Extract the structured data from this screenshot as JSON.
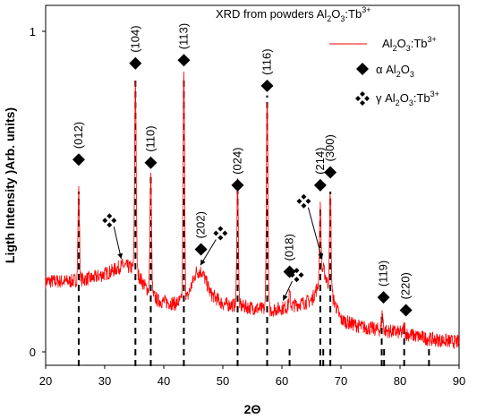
{
  "chart_data": {
    "type": "line",
    "title": "XRD from powders Al₂O₃:Tb³⁺",
    "title_parts": {
      "base": "XRD from powders Al",
      "s1": "2",
      "o": "O",
      "s2": "3",
      "tail": ":Tb",
      "sup": "3+"
    },
    "xlabel": "2Θ",
    "ylabel": "Ligth Intensity )Arb. units)",
    "xlim": [
      20,
      90
    ],
    "ylim": [
      0,
      1
    ],
    "xticks": [
      "20",
      "30",
      "40",
      "50",
      "60",
      "70",
      "80",
      "90"
    ],
    "yticks": [
      "0",
      "1"
    ],
    "series": [
      {
        "name": "Al₂O₃:Tb³⁺",
        "color": "#ff0000",
        "baseline": [
          [
            20,
            0.22
          ],
          [
            24,
            0.22
          ],
          [
            28,
            0.23
          ],
          [
            31,
            0.25
          ],
          [
            33,
            0.27
          ],
          [
            35,
            0.26
          ],
          [
            37,
            0.2
          ],
          [
            39,
            0.16
          ],
          [
            42,
            0.15
          ],
          [
            44,
            0.17
          ],
          [
            45.5,
            0.25
          ],
          [
            46.5,
            0.25
          ],
          [
            48,
            0.18
          ],
          [
            50,
            0.15
          ],
          [
            54,
            0.14
          ],
          [
            58,
            0.13
          ],
          [
            61,
            0.14
          ],
          [
            63,
            0.15
          ],
          [
            65,
            0.16
          ],
          [
            66,
            0.2
          ],
          [
            67,
            0.26
          ],
          [
            68,
            0.2
          ],
          [
            70,
            0.1
          ],
          [
            73,
            0.08
          ],
          [
            76,
            0.07
          ],
          [
            80,
            0.06
          ],
          [
            85,
            0.04
          ],
          [
            90,
            0.03
          ]
        ],
        "peaks": [
          [
            25.6,
            0.5
          ],
          [
            35.2,
            0.85
          ],
          [
            37.8,
            0.55
          ],
          [
            43.4,
            0.86
          ],
          [
            52.5,
            0.53
          ],
          [
            57.5,
            0.8
          ],
          [
            61.3,
            0.18
          ],
          [
            66.5,
            0.45
          ],
          [
            68.2,
            0.5
          ],
          [
            77.0,
            0.12
          ],
          [
            80.7,
            0.08
          ]
        ]
      }
    ],
    "alpha_lines": [
      25.6,
      35.2,
      37.8,
      43.4,
      52.5,
      57.5,
      66.5,
      68.2,
      76.9,
      80.7
    ],
    "gamma_lines": [
      61.3,
      67.0,
      77.3,
      84.9
    ],
    "peak_labels": [
      {
        "x": 25.6,
        "y": 0.6,
        "hkl": "(012)",
        "symbol": "alpha"
      },
      {
        "x": 35.2,
        "y": 0.9,
        "hkl": "(104)",
        "symbol": "alpha"
      },
      {
        "x": 37.8,
        "y": 0.59,
        "hkl": "(110)",
        "symbol": "alpha"
      },
      {
        "x": 43.4,
        "y": 0.91,
        "hkl": "(113)",
        "symbol": "alpha"
      },
      {
        "x": 46.3,
        "y": 0.32,
        "hkl": "(202)",
        "symbol": "alpha"
      },
      {
        "x": 52.5,
        "y": 0.52,
        "hkl": "(024)",
        "symbol": "alpha"
      },
      {
        "x": 57.5,
        "y": 0.83,
        "hkl": "(116)",
        "symbol": "alpha"
      },
      {
        "x": 61.3,
        "y": 0.25,
        "hkl": "(018)",
        "symbol": "alpha"
      },
      {
        "x": 66.5,
        "y": 0.52,
        "hkl": "(214)",
        "symbol": "alpha"
      },
      {
        "x": 68.2,
        "y": 0.56,
        "hkl": "(300)",
        "symbol": "alpha"
      },
      {
        "x": 77.2,
        "y": 0.17,
        "hkl": "(119)",
        "symbol": "alpha"
      },
      {
        "x": 81.0,
        "y": 0.13,
        "hkl": "(220)",
        "symbol": "alpha"
      }
    ],
    "gamma_markers": [
      {
        "x": 30.8,
        "y": 0.41,
        "to_x": 32.8,
        "to_y": 0.29
      },
      {
        "x": 49.6,
        "y": 0.37,
        "to_x": 46.2,
        "to_y": 0.27
      },
      {
        "x": 62.5,
        "y": 0.24,
        "to_x": 60.2,
        "to_y": 0.16
      },
      {
        "x": 63.7,
        "y": 0.47,
        "to_x": 66.8,
        "to_y": 0.29
      }
    ],
    "legend": {
      "position": "top-right",
      "items": [
        {
          "type": "line",
          "parts": {
            "base": "Al",
            "s1": "2",
            "o": "O",
            "s2": "3",
            "tail": ":Tb",
            "sup": "3+"
          }
        },
        {
          "type": "alpha",
          "parts": {
            "base": "α Al",
            "s1": "2",
            "o": "O",
            "s2": "3",
            "tail": "",
            "sup": ""
          }
        },
        {
          "type": "gamma",
          "parts": {
            "base": "γ Al",
            "s1": "2",
            "o": "O",
            "s2": "3",
            "tail": ":Tb",
            "sup": "3+"
          }
        }
      ]
    },
    "grid": false
  }
}
